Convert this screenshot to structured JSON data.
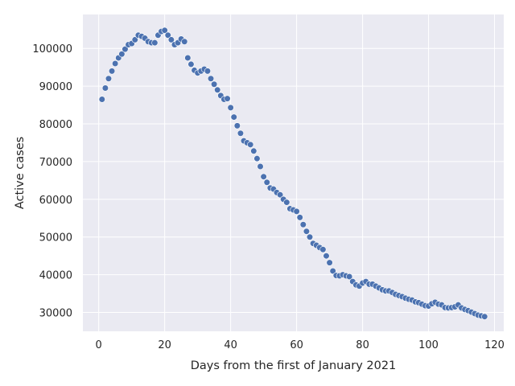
{
  "chart_data": {
    "type": "scatter",
    "title": "",
    "xlabel": "Days from the first of January 2021",
    "ylabel": "Active cases",
    "xlim": [
      -4.8,
      122.8
    ],
    "ylim": [
      25000,
      109000
    ],
    "xticks": [
      0,
      20,
      40,
      60,
      80,
      100,
      120
    ],
    "yticks": [
      30000,
      40000,
      50000,
      60000,
      70000,
      80000,
      90000,
      100000
    ],
    "xtick_labels": [
      "0",
      "20",
      "40",
      "60",
      "80",
      "100",
      "120"
    ],
    "ytick_labels": [
      "30000",
      "40000",
      "50000",
      "60000",
      "70000",
      "80000",
      "90000",
      "100000"
    ],
    "grid": true,
    "background_color": "#eaeaf2",
    "grid_color": "#ffffff",
    "marker_color": "#4c72b0",
    "x": [
      1,
      2,
      3,
      4,
      5,
      6,
      7,
      8,
      9,
      10,
      11,
      12,
      13,
      14,
      15,
      16,
      17,
      18,
      19,
      20,
      21,
      22,
      23,
      24,
      25,
      26,
      27,
      28,
      29,
      30,
      31,
      32,
      33,
      34,
      35,
      36,
      37,
      38,
      39,
      40,
      41,
      42,
      43,
      44,
      45,
      46,
      47,
      48,
      49,
      50,
      51,
      52,
      53,
      54,
      55,
      56,
      57,
      58,
      59,
      60,
      61,
      62,
      63,
      64,
      65,
      66,
      67,
      68,
      69,
      70,
      71,
      72,
      73,
      74,
      75,
      76,
      77,
      78,
      79,
      80,
      81,
      82,
      83,
      84,
      85,
      86,
      87,
      88,
      89,
      90,
      91,
      92,
      93,
      94,
      95,
      96,
      97,
      98,
      99,
      100,
      101,
      102,
      103,
      104,
      105,
      106,
      107,
      108,
      109,
      110,
      111,
      112,
      113,
      114,
      115,
      116,
      117
    ],
    "y": [
      86500,
      89500,
      92000,
      94000,
      96000,
      97500,
      98500,
      99800,
      101000,
      101300,
      102300,
      103500,
      103200,
      102700,
      101800,
      101500,
      101500,
      103500,
      104500,
      104800,
      103500,
      102300,
      101000,
      101500,
      102500,
      101800,
      97500,
      95800,
      94200,
      93500,
      94000,
      94500,
      94000,
      92000,
      90500,
      89000,
      87500,
      86500,
      86700,
      84300,
      81800,
      79500,
      77500,
      75500,
      75000,
      74500,
      72800,
      70800,
      68700,
      66000,
      64500,
      63000,
      62700,
      61800,
      61200,
      60000,
      59200,
      57500,
      57200,
      56800,
      55200,
      53300,
      51500,
      50000,
      48300,
      47800,
      47200,
      46700,
      45000,
      43200,
      41000,
      39800,
      39700,
      40000,
      39700,
      39500,
      38200,
      37300,
      37000,
      37800,
      38200,
      37500,
      37500,
      37000,
      36500,
      36000,
      35700,
      35700,
      35300,
      34800,
      34500,
      34200,
      33800,
      33500,
      33300,
      32800,
      32600,
      32200,
      31800,
      31700,
      32300,
      32700,
      32200,
      32000,
      31300,
      31200,
      31300,
      31500,
      32000,
      31200,
      30800,
      30500,
      30100,
      29700,
      29300,
      29100,
      28900
    ]
  }
}
